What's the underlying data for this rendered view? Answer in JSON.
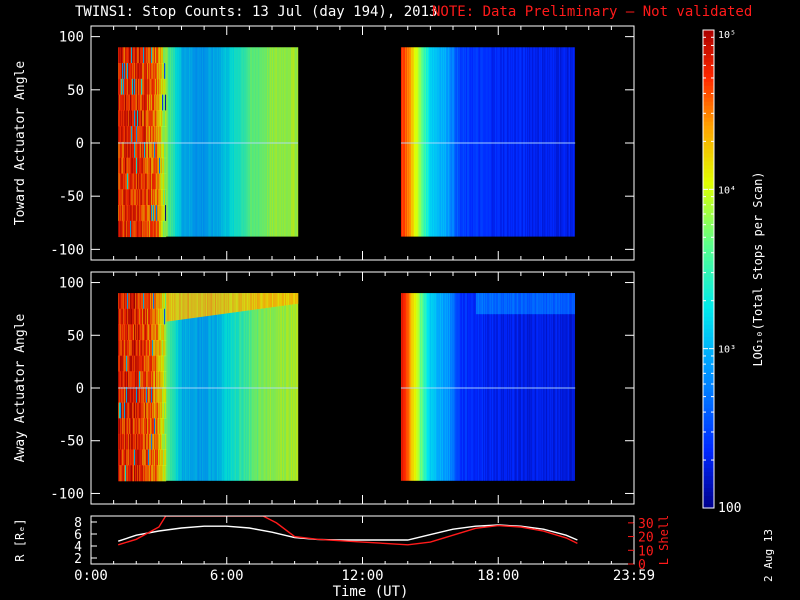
{
  "header": {
    "title": "TWINS1: Stop Counts: 13 Jul (day 194), 2013",
    "note": "NOTE: Data Preliminary – Not validated"
  },
  "footer": {
    "datestamp": "2 Aug 13"
  },
  "colors": {
    "background": "#000000",
    "note": "#ff1a1a",
    "trace_white": "#ffffff",
    "trace_red": "#ff1a1a"
  },
  "chart_data": [
    {
      "type": "heatmap",
      "panel": "toward",
      "ylabel": "Toward Actuator Angle",
      "ylim": [
        -110,
        110
      ],
      "yticks": [
        100,
        50,
        0,
        -50,
        -100
      ],
      "ytick_labels": [
        "100",
        "50",
        "0",
        "-50",
        "-100"
      ],
      "xlim_hours": [
        0,
        24
      ],
      "angle_range": [
        -88,
        90
      ],
      "blocks": [
        {
          "t_start_h": 1.2,
          "t_end_h": 9.15,
          "profile": [
            {
              "t": 1.2,
              "log": 4.72
            },
            {
              "t": 2.0,
              "log": 4.75
            },
            {
              "t": 2.9,
              "log": 4.45
            },
            {
              "t": 3.4,
              "log": 3.65
            },
            {
              "t": 4.0,
              "log": 3.05
            },
            {
              "t": 4.8,
              "log": 2.9
            },
            {
              "t": 5.5,
              "log": 3.0
            },
            {
              "t": 6.2,
              "log": 3.25
            },
            {
              "t": 7.0,
              "log": 3.62
            },
            {
              "t": 8.0,
              "log": 3.82
            },
            {
              "t": 9.15,
              "log": 3.9
            }
          ]
        },
        {
          "t_start_h": 13.7,
          "t_end_h": 21.4,
          "profile": [
            {
              "t": 13.7,
              "log": 4.72
            },
            {
              "t": 14.0,
              "log": 4.5
            },
            {
              "t": 14.5,
              "log": 3.8
            },
            {
              "t": 15.0,
              "log": 3.15
            },
            {
              "t": 15.8,
              "log": 2.9
            },
            {
              "t": 16.3,
              "log": 2.45
            },
            {
              "t": 18.0,
              "log": 2.35
            },
            {
              "t": 21.4,
              "log": 2.28
            }
          ]
        }
      ]
    },
    {
      "type": "heatmap",
      "panel": "away",
      "ylabel": "Away Actuator Angle",
      "ylim": [
        -110,
        110
      ],
      "yticks": [
        100,
        50,
        0,
        -50,
        -100
      ],
      "ytick_labels": [
        "100",
        "50",
        "0",
        "-50",
        "-100"
      ],
      "xlim_hours": [
        0,
        24
      ],
      "angle_range": [
        -88,
        90
      ],
      "blocks": [
        {
          "t_start_h": 1.2,
          "t_end_h": 9.15,
          "profile": [
            {
              "t": 1.2,
              "log": 4.72
            },
            {
              "t": 2.0,
              "log": 4.75
            },
            {
              "t": 2.9,
              "log": 4.45
            },
            {
              "t": 3.4,
              "log": 3.65
            },
            {
              "t": 4.0,
              "log": 3.05
            },
            {
              "t": 4.8,
              "log": 2.95
            },
            {
              "t": 5.5,
              "log": 3.05
            },
            {
              "t": 6.2,
              "log": 3.3
            },
            {
              "t": 7.0,
              "log": 3.62
            },
            {
              "t": 8.0,
              "log": 3.85
            },
            {
              "t": 9.15,
              "log": 3.92
            }
          ],
          "high_band": {
            "angle_min": 62,
            "t_start_h": 3.0,
            "t_end_h": 9.15,
            "log": 4.3
          }
        },
        {
          "t_start_h": 13.7,
          "t_end_h": 21.4,
          "profile": [
            {
              "t": 13.7,
              "log": 4.78
            },
            {
              "t": 14.0,
              "log": 4.55
            },
            {
              "t": 14.5,
              "log": 3.75
            },
            {
              "t": 15.0,
              "log": 3.1
            },
            {
              "t": 15.8,
              "log": 2.85
            },
            {
              "t": 16.3,
              "log": 2.4
            },
            {
              "t": 18.0,
              "log": 2.3
            },
            {
              "t": 21.4,
              "log": 2.25
            }
          ]
        }
      ]
    },
    {
      "type": "line",
      "panel": "orbit",
      "ylabel_left": "R [Rₑ]",
      "ylabel_right": "L Shell",
      "ylim_left": [
        1,
        9
      ],
      "ylim_right": [
        0,
        35
      ],
      "yticks_left": [
        2,
        4,
        6,
        8
      ],
      "yticks_right": [
        0,
        10,
        20,
        30
      ],
      "xlim_hours": [
        0,
        24
      ],
      "xticks": [
        0,
        6,
        12,
        18,
        24
      ],
      "xtick_labels": [
        "0:00",
        "6:00",
        "12:00",
        "18:00",
        "23:59"
      ],
      "xlabel": "Time (UT)",
      "series": [
        {
          "name": "R",
          "axis": "left",
          "color": "#ffffff",
          "x": [
            1.2,
            2.0,
            3.0,
            4.0,
            5.0,
            6.0,
            7.0,
            8.0,
            9.0,
            10.0,
            11.0,
            12.0,
            13.0,
            14.0,
            15.0,
            16.0,
            17.0,
            18.0,
            19.0,
            20.0,
            21.0,
            21.5
          ],
          "y": [
            4.8,
            5.8,
            6.5,
            7.0,
            7.3,
            7.3,
            7.0,
            6.3,
            5.4,
            5.1,
            5.0,
            5.0,
            5.0,
            5.0,
            5.9,
            6.8,
            7.3,
            7.5,
            7.3,
            6.8,
            5.8,
            5.0
          ]
        },
        {
          "name": "L Shell",
          "axis": "right",
          "color": "#ff1a1a",
          "x": [
            1.2,
            2.0,
            3.0,
            3.3,
            7.6,
            8.2,
            9.0,
            10.0,
            11.0,
            12.0,
            13.0,
            14.0,
            15.0,
            16.0,
            17.0,
            18.0,
            19.0,
            20.0,
            21.0,
            21.5
          ],
          "y": [
            14,
            18,
            27,
            35,
            35,
            30,
            20,
            18,
            17,
            16,
            15,
            14,
            16,
            21,
            26,
            28,
            27,
            24,
            19,
            15
          ]
        }
      ]
    },
    {
      "type": "colorbar",
      "label": "LOG₁₀(Total Stops per Scan)",
      "scale": "log",
      "range": [
        100,
        100000
      ],
      "tick_labels": [
        "10⁵",
        "10⁴",
        "10³",
        "100"
      ],
      "tick_logs": [
        5,
        4,
        3,
        2
      ]
    }
  ]
}
